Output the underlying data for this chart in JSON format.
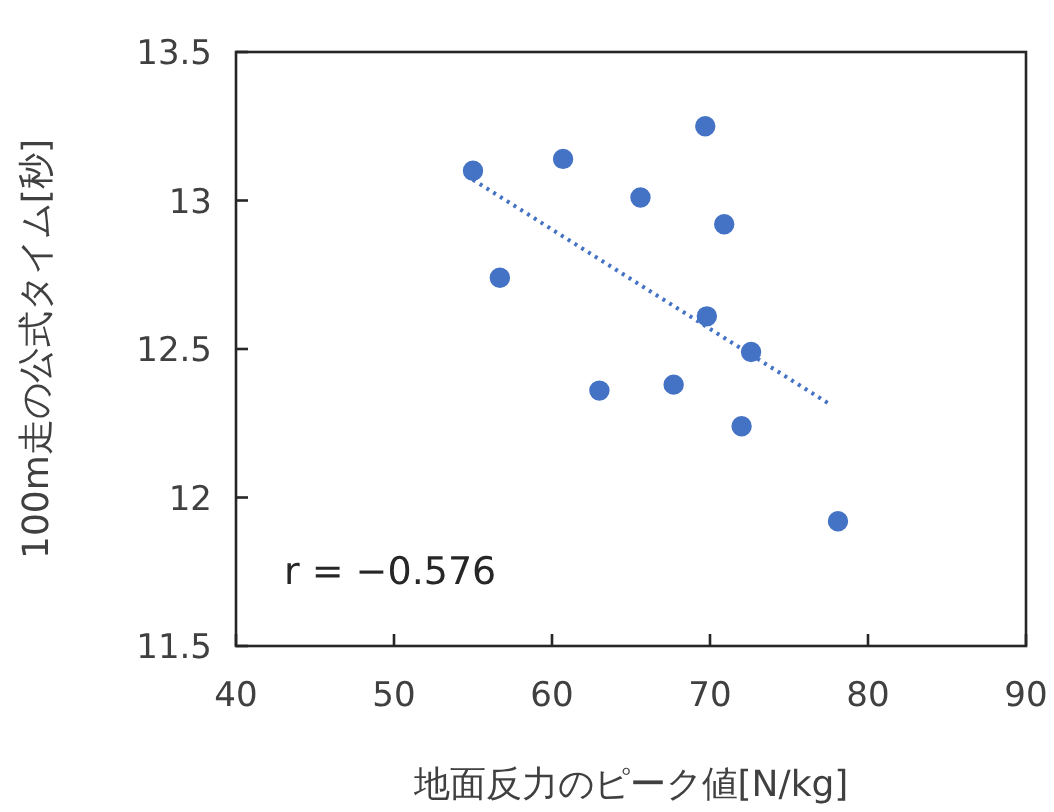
{
  "chart_data": {
    "type": "scatter",
    "xlabel": "地面反力のピーク値[N/kg]",
    "ylabel": "100m走の公式タイム[秒]",
    "series": [
      {
        "type": "scatter",
        "color": "#4472c4",
        "marker": "circle",
        "x": [
          55.0,
          60.7,
          69.7,
          65.6,
          70.9,
          56.7,
          69.8,
          72.6,
          63.0,
          67.7,
          72.0,
          78.1
        ],
        "values": [
          13.1,
          13.14,
          13.25,
          13.01,
          12.92,
          12.74,
          12.61,
          12.49,
          12.36,
          12.38,
          12.24,
          11.92
        ]
      },
      {
        "type": "line",
        "color": "#4472c4",
        "line_style": "dotted",
        "x": [
          55.0,
          77.7
        ],
        "values": [
          13.07,
          12.31
        ]
      }
    ],
    "xlim": [
      40,
      90
    ],
    "xticks": [
      40,
      50,
      60,
      70,
      80,
      90
    ],
    "ylim": [
      11.5,
      13.5
    ],
    "yticks": [
      11.5,
      12,
      12.5,
      13,
      13.5
    ],
    "annotations": [
      "r = −0.576"
    ]
  }
}
